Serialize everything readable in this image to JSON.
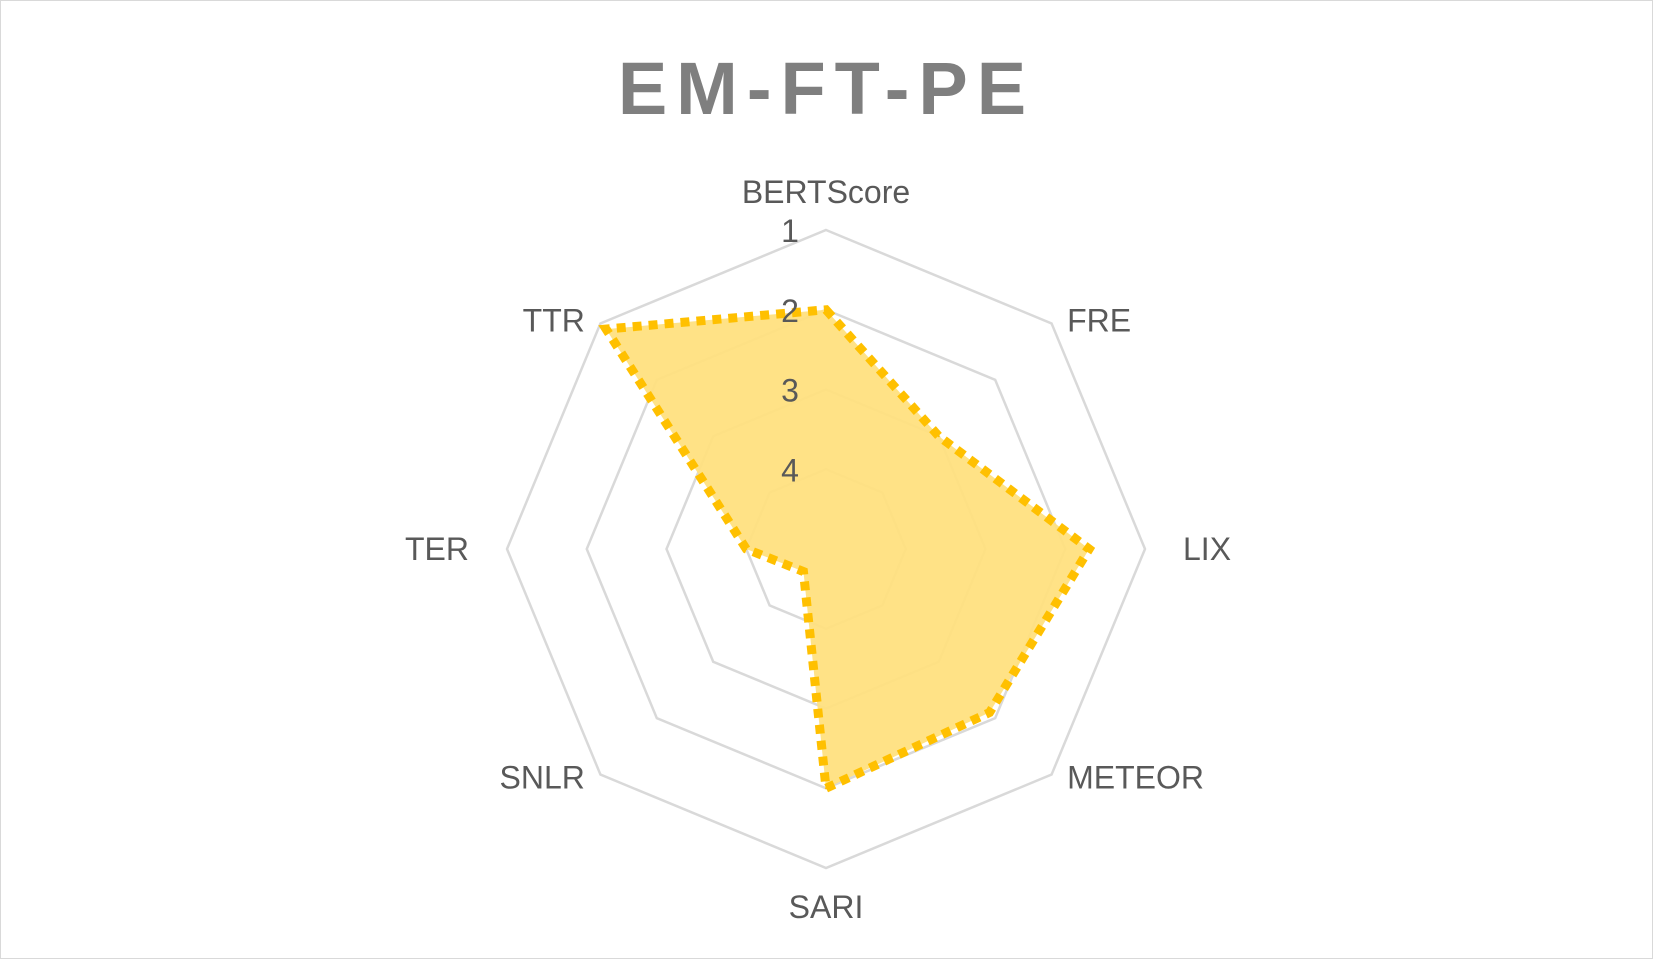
{
  "chart_data": {
    "type": "radar",
    "title": "EM-FT-PE",
    "axes": [
      "BERTScore",
      "FRE",
      "LIX",
      "METEOR",
      "SARI",
      "SNLR",
      "TER",
      "TTR"
    ],
    "tick_labels": [
      "1",
      "2",
      "3",
      "4"
    ],
    "scale": {
      "outer": 1,
      "inner": 5,
      "step": 1
    },
    "grid": true,
    "series": [
      {
        "values": [
          2.0,
          3.0,
          1.7,
          2.1,
          2.0,
          4.6,
          4.0,
          1.1
        ]
      }
    ],
    "colors": {
      "series_line": "#FFC000",
      "series_fill": "#FFE080",
      "grid": "#D9D9D9",
      "text": "#595959",
      "title": "#7F7F7F"
    }
  }
}
